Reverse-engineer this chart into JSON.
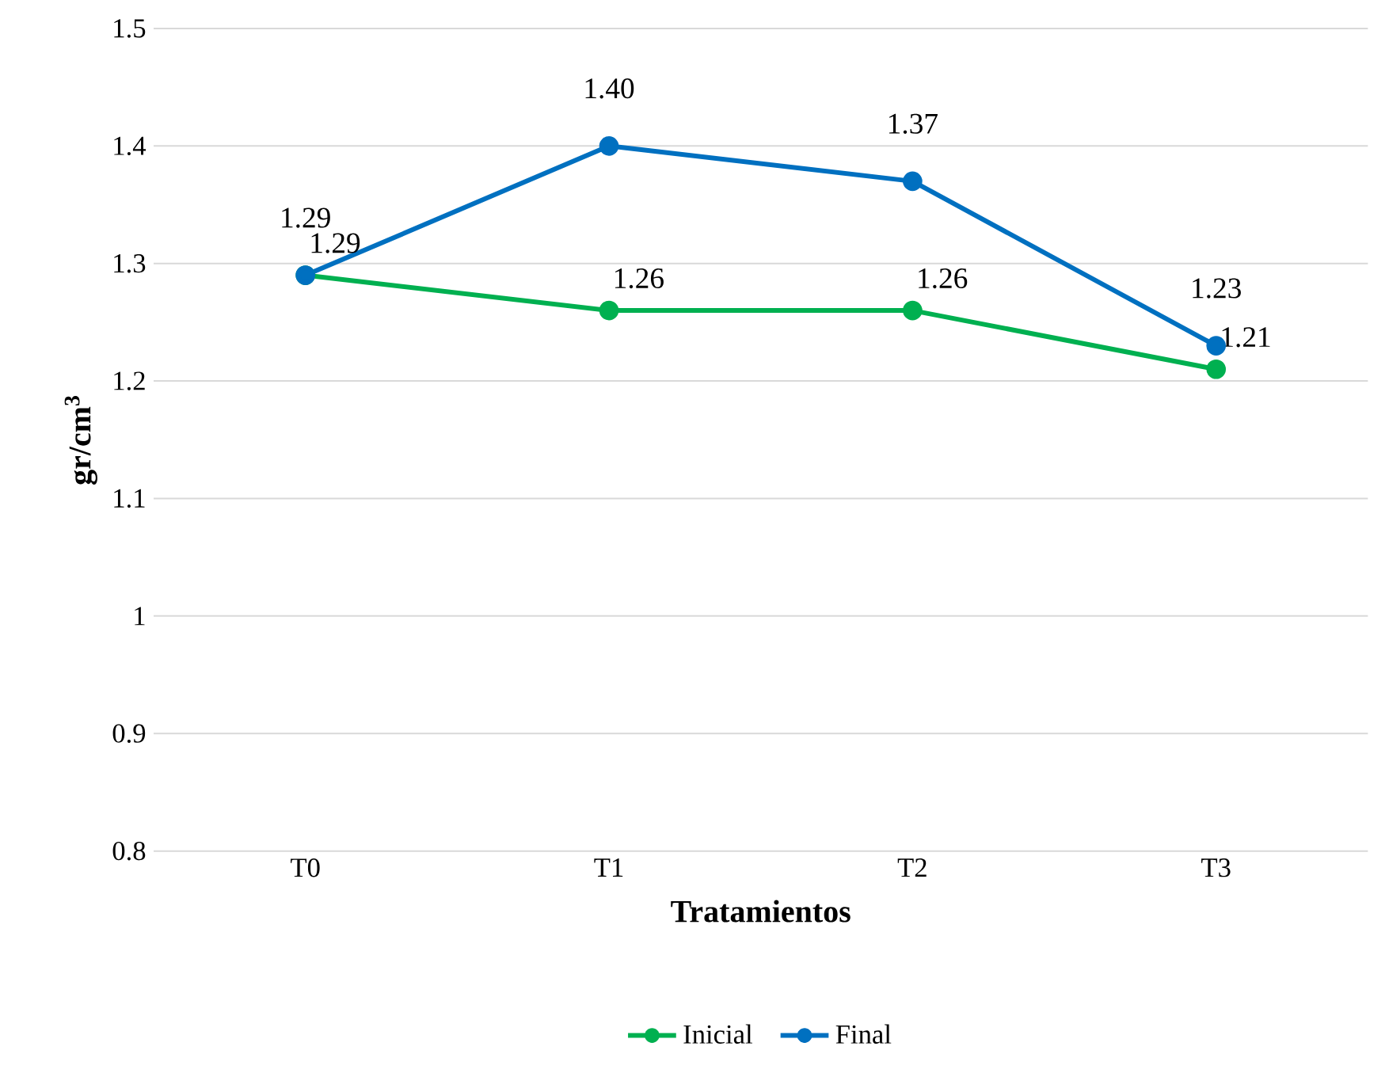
{
  "chart_data": {
    "type": "line",
    "xlabel": "Tratamientos",
    "ylabel": "**gr/cm$^{3}$**",
    "categories": [
      "T0",
      "T1",
      "T2",
      "T3"
    ],
    "series": [
      {
        "name": "Inicial",
        "color": "#00b050",
        "values": [
          1.29,
          1.26,
          1.26,
          1.21
        ],
        "value_labels": [
          "1.29",
          "1.26",
          "1.26",
          "1.21"
        ]
      },
      {
        "name": "Final",
        "color": "#0070c0",
        "values": [
          1.29,
          1.4,
          1.37,
          1.23
        ],
        "value_labels": [
          "1.29",
          "1.40",
          "1.37",
          "1.23"
        ]
      }
    ],
    "ylim": [
      0.8,
      1.5
    ],
    "yticks": [
      0.8,
      0.9,
      1,
      1.1,
      1.2,
      1.3,
      1.4,
      1.5
    ],
    "grid": "y",
    "legend": "bottom",
    "marker": "circle",
    "line_style": "solid"
  }
}
